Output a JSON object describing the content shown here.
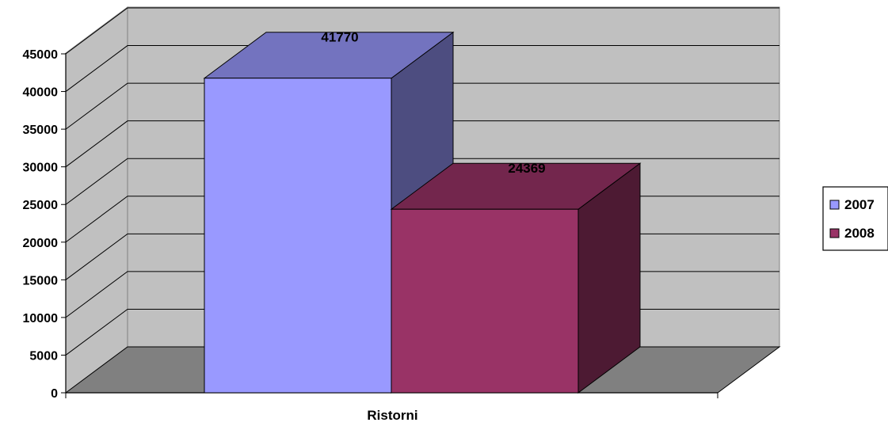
{
  "chart_data": {
    "type": "bar",
    "style": "3d-clustered-column",
    "categories": [
      "Ristorni"
    ],
    "series": [
      {
        "name": "2007",
        "values": [
          41770
        ],
        "color": "#9999FF"
      },
      {
        "name": "2008",
        "values": [
          24369
        ],
        "color": "#993366"
      }
    ],
    "data_labels": [
      "41770",
      "24369"
    ],
    "title": "",
    "xlabel": "",
    "ylabel": "",
    "ylim": [
      0,
      45000
    ],
    "yticks": [
      0,
      5000,
      10000,
      15000,
      20000,
      25000,
      30000,
      35000,
      40000,
      45000
    ],
    "ytick_labels": [
      "0",
      "5000",
      "10000",
      "15000",
      "20000",
      "25000",
      "30000",
      "35000",
      "40000",
      "45000"
    ],
    "grid": true,
    "legend_position": "right",
    "colors": {
      "wall": "#C0C0C0",
      "floor": "#808080",
      "gridline": "#000000"
    }
  }
}
